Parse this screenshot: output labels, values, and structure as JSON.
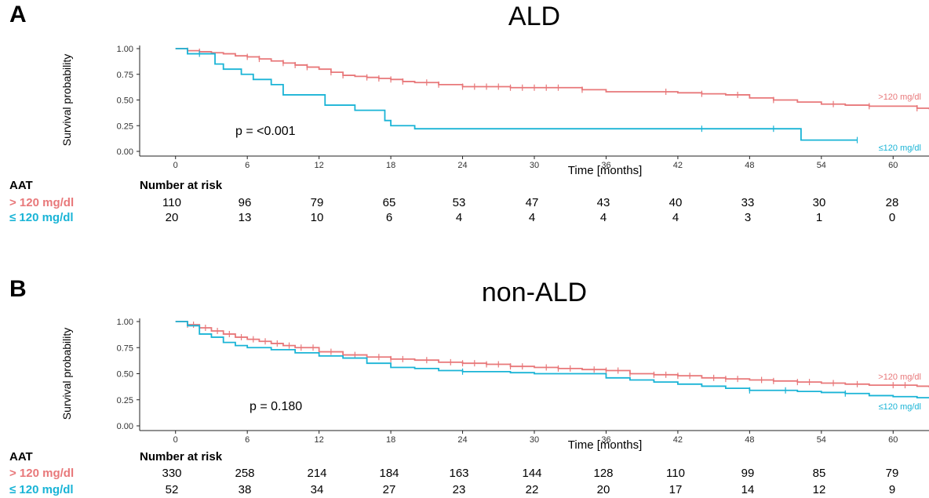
{
  "chart_data": [
    {
      "type": "line",
      "panel_label": "A",
      "title": "ALD",
      "xlabel": "Time [months]",
      "ylabel": "Survival probability",
      "xlim": [
        -3,
        63
      ],
      "ylim": [
        0,
        1
      ],
      "x_ticks": [
        0,
        6,
        12,
        18,
        24,
        30,
        36,
        42,
        48,
        54,
        60
      ],
      "y_ticks": [
        "0.00",
        "0.25",
        "0.50",
        "0.75",
        "1.00"
      ],
      "annotation": "p = <0.001",
      "colors": {
        "high": "#e8787a",
        "low": "#1ab4d6"
      },
      "series": [
        {
          "name": ">120 mg/dl",
          "x": [
            0,
            1,
            2,
            3,
            4,
            5,
            6,
            7,
            8,
            9,
            10,
            11,
            12,
            13,
            14,
            15,
            16,
            17,
            18,
            19,
            20,
            22,
            24,
            26,
            28,
            30,
            32,
            34,
            36,
            38,
            40,
            42,
            44,
            46,
            48,
            50,
            52,
            54,
            56,
            58,
            60,
            62,
            63
          ],
          "y": [
            1.0,
            0.98,
            0.97,
            0.96,
            0.95,
            0.93,
            0.92,
            0.9,
            0.88,
            0.86,
            0.84,
            0.82,
            0.8,
            0.77,
            0.74,
            0.73,
            0.72,
            0.71,
            0.7,
            0.68,
            0.67,
            0.65,
            0.63,
            0.63,
            0.62,
            0.62,
            0.62,
            0.6,
            0.58,
            0.58,
            0.58,
            0.57,
            0.56,
            0.55,
            0.52,
            0.5,
            0.48,
            0.46,
            0.45,
            0.44,
            0.44,
            0.42,
            0.41
          ],
          "censor_x": [
            1,
            2,
            6,
            7,
            9,
            10,
            11,
            13,
            14,
            16,
            17,
            18,
            19,
            21,
            22,
            24,
            25,
            26,
            27,
            28,
            29,
            30,
            31,
            32,
            34,
            41,
            44,
            47,
            50,
            55,
            58,
            62
          ]
        },
        {
          "name": "≤120 mg/dl",
          "x": [
            0,
            1,
            2,
            3.3,
            4,
            5.5,
            6.5,
            8,
            9,
            12.5,
            13,
            15,
            17.5,
            18,
            20,
            24,
            30,
            36,
            42,
            48,
            52.3,
            57
          ],
          "y": [
            1.0,
            0.95,
            0.95,
            0.85,
            0.8,
            0.75,
            0.7,
            0.65,
            0.55,
            0.45,
            0.45,
            0.4,
            0.3,
            0.25,
            0.22,
            0.22,
            0.22,
            0.22,
            0.22,
            0.22,
            0.11,
            0.11
          ],
          "censor_x": [
            2,
            44,
            50,
            57
          ]
        }
      ],
      "risk_table": {
        "group_header": "AAT",
        "header": "Number at risk",
        "rows": [
          {
            "label": "> 120 mg/dl",
            "values": [
              "110",
              "96",
              "79",
              "65",
              "53",
              "47",
              "43",
              "40",
              "33",
              "30",
              "28"
            ]
          },
          {
            "label": "≤ 120 mg/dl",
            "values": [
              "20",
              "13",
              "10",
              "6",
              "4",
              "4",
              "4",
              "4",
              "3",
              "1",
              "0"
            ]
          }
        ]
      }
    },
    {
      "type": "line",
      "panel_label": "B",
      "title": "non-ALD",
      "xlabel": "Time [months]",
      "ylabel": "Survival probability",
      "xlim": [
        -3,
        63
      ],
      "ylim": [
        0,
        1
      ],
      "x_ticks": [
        0,
        6,
        12,
        18,
        24,
        30,
        36,
        42,
        48,
        54,
        60
      ],
      "y_ticks": [
        "0.00",
        "0.25",
        "0.50",
        "0.75",
        "1.00"
      ],
      "annotation": "p = 0.180",
      "colors": {
        "high": "#e8787a",
        "low": "#1ab4d6"
      },
      "series": [
        {
          "name": ">120 mg/dl",
          "x": [
            0,
            1,
            2,
            3,
            4,
            5,
            6,
            7,
            8,
            9,
            10,
            12,
            14,
            16,
            18,
            20,
            22,
            24,
            26,
            28,
            30,
            32,
            34,
            36,
            38,
            40,
            42,
            44,
            46,
            48,
            50,
            52,
            54,
            56,
            58,
            60,
            62,
            63
          ],
          "y": [
            1.0,
            0.97,
            0.94,
            0.91,
            0.88,
            0.85,
            0.83,
            0.81,
            0.79,
            0.77,
            0.75,
            0.71,
            0.68,
            0.66,
            0.64,
            0.63,
            0.61,
            0.6,
            0.59,
            0.57,
            0.56,
            0.55,
            0.54,
            0.53,
            0.5,
            0.49,
            0.48,
            0.46,
            0.45,
            0.44,
            0.43,
            0.42,
            0.41,
            0.4,
            0.39,
            0.39,
            0.38,
            0.37
          ],
          "censor_x": [
            1,
            1.5,
            2.5,
            3.5,
            4.5,
            5.5,
            6.5,
            7.5,
            8.5,
            9.5,
            10.5,
            11.5,
            13,
            14,
            15,
            17,
            18,
            19,
            21,
            23,
            24,
            25,
            26,
            27,
            28,
            29,
            31,
            32,
            33,
            35,
            36,
            37,
            38,
            40,
            41,
            42,
            43,
            45,
            46,
            47,
            49,
            50,
            52,
            53,
            55,
            57,
            60,
            61
          ]
        },
        {
          "name": "≤120 mg/dl",
          "x": [
            0,
            1,
            2,
            3,
            4,
            5,
            6,
            8,
            10,
            12,
            14,
            16,
            18,
            20,
            22,
            24,
            26,
            28,
            30,
            32,
            34,
            36,
            38,
            40,
            42,
            44,
            46,
            48,
            50,
            52,
            54,
            56,
            58,
            60,
            62,
            63
          ],
          "y": [
            1.0,
            0.96,
            0.88,
            0.85,
            0.8,
            0.77,
            0.75,
            0.73,
            0.7,
            0.67,
            0.65,
            0.6,
            0.56,
            0.55,
            0.53,
            0.52,
            0.52,
            0.51,
            0.5,
            0.5,
            0.5,
            0.46,
            0.44,
            0.42,
            0.4,
            0.38,
            0.36,
            0.34,
            0.34,
            0.33,
            0.32,
            0.31,
            0.29,
            0.28,
            0.27,
            0.27
          ],
          "censor_x": [
            24,
            48,
            51,
            56
          ]
        }
      ],
      "risk_table": {
        "group_header": "AAT",
        "header": "Number at risk",
        "rows": [
          {
            "label": "> 120 mg/dl",
            "values": [
              "330",
              "258",
              "214",
              "184",
              "163",
              "144",
              "128",
              "110",
              "99",
              "85",
              "79"
            ]
          },
          {
            "label": "≤ 120 mg/dl",
            "values": [
              "52",
              "38",
              "34",
              "27",
              "23",
              "22",
              "20",
              "17",
              "14",
              "12",
              "9"
            ]
          }
        ]
      }
    }
  ]
}
